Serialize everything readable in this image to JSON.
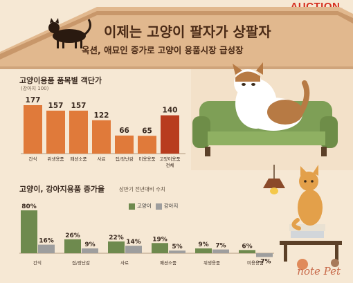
{
  "brand": "AUCTION.",
  "header": {
    "title": "이제는 고양이 팔자가 상팔자",
    "subtitle": "옥션, 애묘인 증가로 고양이 용품시장  급성장"
  },
  "watermark": "note Pet",
  "colors": {
    "background": "#f6e8d4",
    "roof": "#e1b88e",
    "orange_bar": "#e07a3a",
    "highlight_bar": "#b83c1e",
    "cat_bar": "#6e8a4e",
    "dog_bar": "#9e9e9e",
    "text_dark": "#4a2a16"
  },
  "icons": [
    "cat-silhouette-icon",
    "sofa-cat-illustration",
    "pendant-lamp-icon",
    "sitting-cat-illustration",
    "dog-cat-logo-icon"
  ],
  "chart_data": [
    {
      "type": "bar",
      "title": "고양이용품 품목별 객단가",
      "note": "(강아지 100)",
      "categories": [
        "간식",
        "위생용품",
        "패션소품",
        "사료",
        "집/장난감",
        "미용용품",
        "고양이용품 전체"
      ],
      "category_labels": [
        [
          "간식"
        ],
        [
          "위생용품"
        ],
        [
          "패션소품"
        ],
        [
          "사료"
        ],
        [
          "집/장난감"
        ],
        [
          "미용용품"
        ],
        [
          "고양이용품",
          "전체"
        ]
      ],
      "values": [
        177,
        157,
        157,
        122,
        66,
        65,
        140
      ],
      "value_labels": [
        "177",
        "157",
        "157",
        "122",
        "66",
        "65",
        "140"
      ],
      "highlight_index": 6,
      "ylim": [
        0,
        180
      ]
    },
    {
      "type": "bar",
      "title": "고양이, 강아지용품 증가율",
      "note": "상반기 전년대비 수치",
      "categories": [
        "간식",
        "집/장난감",
        "사료",
        "패션소품",
        "위생용품",
        "미용용품"
      ],
      "series": [
        {
          "name": "고양이",
          "values": [
            80,
            26,
            22,
            19,
            9,
            6
          ],
          "labels": [
            "80%",
            "26%",
            "22%",
            "19%",
            "9%",
            "6%"
          ]
        },
        {
          "name": "강아지",
          "values": [
            16,
            9,
            14,
            5,
            7,
            -7
          ],
          "labels": [
            "16%",
            "9%",
            "14%",
            "5%",
            "7%",
            "-7%"
          ]
        }
      ],
      "ylim": [
        -7,
        80
      ]
    }
  ]
}
